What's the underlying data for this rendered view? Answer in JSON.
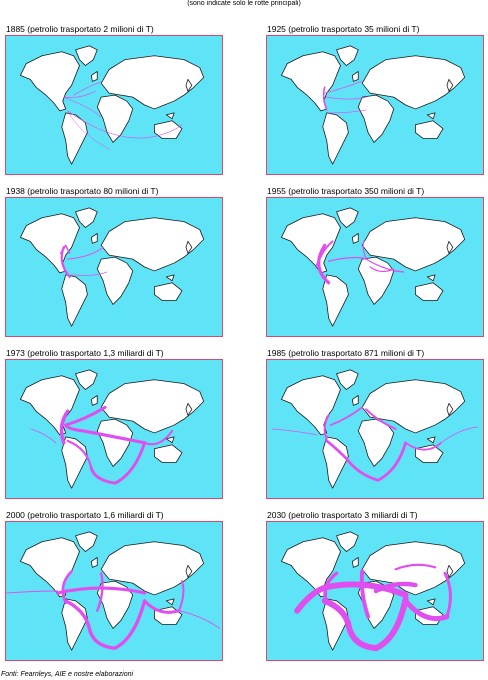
{
  "header": "(sono indicate solo le rotte principali)",
  "route_color": "#e04ef0",
  "sea_color": "#5fe3f7",
  "frame_color": "#d94a6e",
  "panels": [
    {
      "caption": "1885 (petrolio trasportato 2 milioni di T)",
      "year": 1885,
      "transported": "2 milioni di T"
    },
    {
      "caption": "1925 (petrolio trasportato 35 milioni di T)",
      "year": 1925,
      "transported": "35 milioni di T"
    },
    {
      "caption": "1938 (petrolio trasportato 80 milioni di T)",
      "year": 1938,
      "transported": "80 milioni di T"
    },
    {
      "caption": "1955 (petrolio trasportato 350 milioni di T)",
      "year": 1955,
      "transported": "350 milioni di T"
    },
    {
      "caption": "1973 (petrolio trasportato 1,3 miliardi di T)",
      "year": 1973,
      "transported": "1,3 miliardi di T"
    },
    {
      "caption": "1985 (petrolio trasportato 871 milioni di T)",
      "year": 1985,
      "transported": "871 milioni di T"
    },
    {
      "caption": "2000 (petrolio trasportato 1,6 miliardi di T)",
      "year": 2000,
      "transported": "1,6 miliardi di T"
    },
    {
      "caption": "2030 (petrolio trasportato 3 miliardi di T)",
      "year": 2030,
      "transported": "3 miliardi di T"
    }
  ],
  "source": "Fonti: Fearnleys, AIE e nostre elaborazioni"
}
